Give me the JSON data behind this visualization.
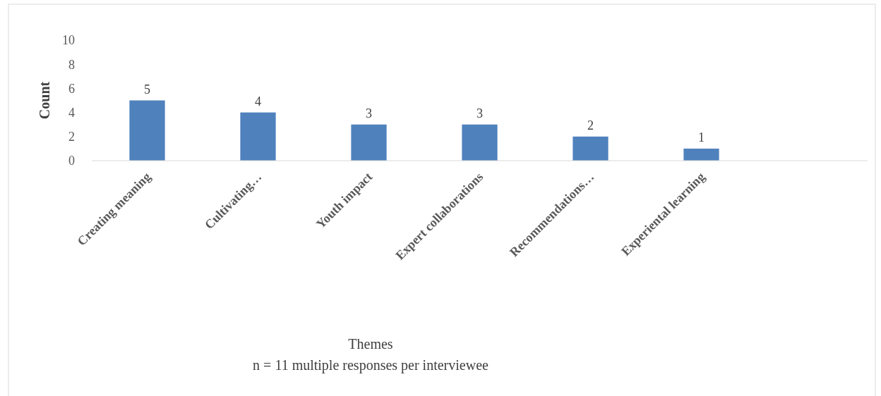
{
  "chart_data": {
    "type": "bar",
    "categories": [
      "Creating meaning",
      "Cultivating…",
      "Youth impact",
      "Expert collaborations",
      "Recommendations…",
      "Experiental learning",
      null
    ],
    "values": [
      5,
      4,
      3,
      3,
      2,
      1,
      null
    ],
    "color": "#4f81bd",
    "data_labels": true,
    "ylim": [
      0,
      10
    ],
    "yticks": [
      0,
      2,
      4,
      6,
      8,
      10
    ],
    "ylabel": "Count",
    "grid": false,
    "annotations": [
      "Themes",
      "n = 11 multiple responses per interviewee"
    ]
  }
}
